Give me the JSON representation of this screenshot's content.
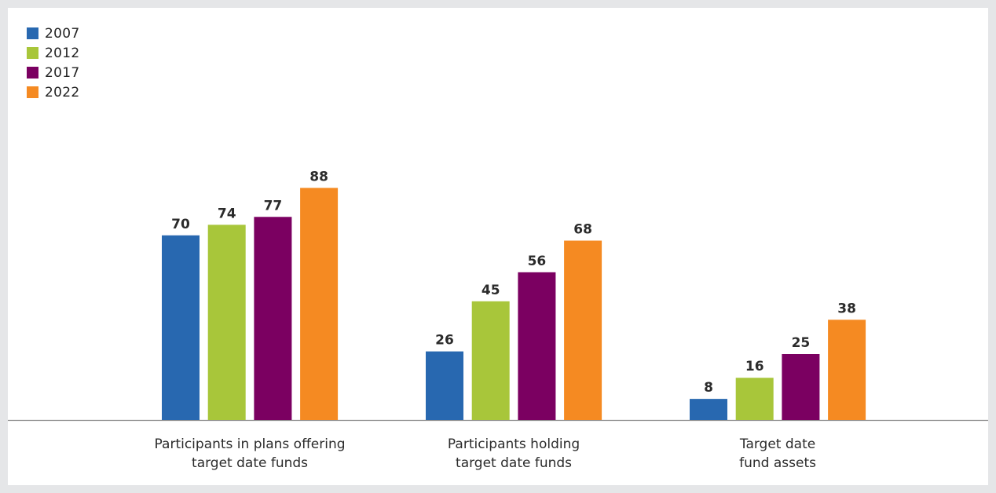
{
  "chart_data": {
    "type": "bar",
    "categories": [
      [
        "Participants in plans offering",
        "target date funds"
      ],
      [
        "Participants holding",
        "target date funds"
      ],
      [
        "Target date",
        "fund assets"
      ]
    ],
    "series": [
      {
        "name": "2007",
        "color": "#2868b0",
        "values": [
          70,
          26,
          8
        ]
      },
      {
        "name": "2012",
        "color": "#a8c63a",
        "values": [
          74,
          45,
          16
        ]
      },
      {
        "name": "2017",
        "color": "#7b0061",
        "values": [
          77,
          56,
          25
        ]
      },
      {
        "name": "2022",
        "color": "#f58a22",
        "values": [
          88,
          68,
          38
        ]
      }
    ],
    "ylim": [
      0,
      100
    ],
    "grid": false,
    "legend_position": "top-left",
    "title": "",
    "xlabel": "",
    "ylabel": ""
  }
}
